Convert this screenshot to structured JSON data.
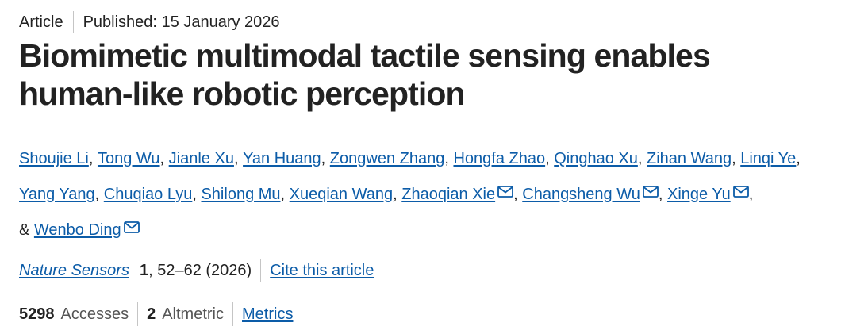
{
  "header": {
    "type": "Article",
    "published": "Published: 15 January 2026"
  },
  "title": "Biomimetic multimodal tactile sensing enables human-like robotic perception",
  "authors": [
    {
      "name": "Shoujie Li",
      "sep": ", ",
      "email": false
    },
    {
      "name": "Tong Wu",
      "sep": ", ",
      "email": false
    },
    {
      "name": "Jianle Xu",
      "sep": ", ",
      "email": false
    },
    {
      "name": "Yan Huang",
      "sep": ", ",
      "email": false
    },
    {
      "name": "Zongwen Zhang",
      "sep": ", ",
      "email": false
    },
    {
      "name": "Hongfa Zhao",
      "sep": ", ",
      "email": false
    },
    {
      "name": "Qinghao Xu",
      "sep": ", ",
      "email": false
    },
    {
      "name": "Zihan Wang",
      "sep": ", ",
      "email": false
    },
    {
      "name": "Linqi Ye",
      "sep": ", ",
      "email": false
    },
    {
      "name": "Yang Yang",
      "sep": ", ",
      "email": false
    },
    {
      "name": "Chuqiao Lyu",
      "sep": ", ",
      "email": false
    },
    {
      "name": "Shilong Mu",
      "sep": ", ",
      "email": false
    },
    {
      "name": "Xueqian Wang",
      "sep": ", ",
      "email": false
    },
    {
      "name": "Zhaoqian Xie",
      "sep": ", ",
      "email": true
    },
    {
      "name": "Changsheng Wu",
      "sep": ", ",
      "email": true
    },
    {
      "name": "Xinge Yu",
      "sep": "",
      "email": true
    },
    {
      "name": "Wenbo Ding",
      "sep": "",
      "email": true,
      "prefix": "& "
    }
  ],
  "citation": {
    "journal": "Nature Sensors",
    "volume": "1",
    "pages_year": ", 52–62 (2026)",
    "cite_label": "Cite this article"
  },
  "metrics": {
    "accesses_value": "5298",
    "accesses_label": "Accesses",
    "altmetric_value": "2",
    "altmetric_label": "Altmetric",
    "metrics_link": "Metrics"
  },
  "colors": {
    "link": "#0c5ca8",
    "text": "#222222",
    "separator": "#c5c5c5"
  },
  "icons": {
    "email": "envelope-icon"
  }
}
